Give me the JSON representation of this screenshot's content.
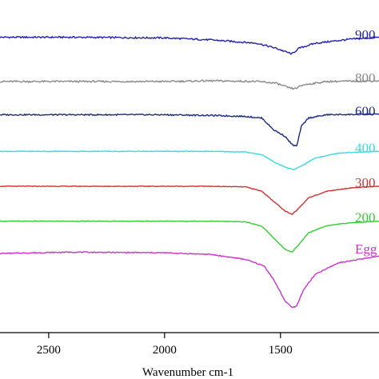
{
  "chart_data": {
    "type": "line",
    "title": "",
    "xlabel": "Wavenumber cm-1",
    "ylabel": "",
    "xlim": [
      2710,
      1075
    ],
    "x_reversed": true,
    "xticks": [
      2500,
      2000,
      1500
    ],
    "ylim": [
      0,
      10
    ],
    "grid": false,
    "legend": "right-edge inline labels",
    "series": [
      {
        "name": "900",
        "color": "#2222aa",
        "baseline": 8.85,
        "points": [
          [
            2710,
            8.88
          ],
          [
            2400,
            8.88
          ],
          [
            2000,
            8.86
          ],
          [
            1800,
            8.8
          ],
          [
            1600,
            8.7
          ],
          [
            1520,
            8.55
          ],
          [
            1460,
            8.4
          ],
          [
            1450,
            8.38
          ],
          [
            1420,
            8.55
          ],
          [
            1350,
            8.7
          ],
          [
            1200,
            8.82
          ],
          [
            1075,
            8.88
          ]
        ]
      },
      {
        "name": "800",
        "color": "#888888",
        "baseline": 7.55,
        "points": [
          [
            2710,
            7.55
          ],
          [
            2400,
            7.55
          ],
          [
            2000,
            7.55
          ],
          [
            1800,
            7.57
          ],
          [
            1600,
            7.55
          ],
          [
            1520,
            7.5
          ],
          [
            1460,
            7.35
          ],
          [
            1440,
            7.33
          ],
          [
            1400,
            7.45
          ],
          [
            1300,
            7.55
          ],
          [
            1075,
            7.57
          ]
        ]
      },
      {
        "name": "600",
        "color": "#1a2a80",
        "baseline": 6.55,
        "points": [
          [
            2710,
            6.55
          ],
          [
            2400,
            6.55
          ],
          [
            2000,
            6.55
          ],
          [
            1800,
            6.53
          ],
          [
            1650,
            6.5
          ],
          [
            1580,
            6.45
          ],
          [
            1530,
            6.1
          ],
          [
            1480,
            5.9
          ],
          [
            1450,
            5.65
          ],
          [
            1430,
            5.6
          ],
          [
            1410,
            6.2
          ],
          [
            1380,
            6.45
          ],
          [
            1300,
            6.55
          ],
          [
            1075,
            6.57
          ]
        ]
      },
      {
        "name": "400",
        "color": "#33dddd",
        "baseline": 5.45,
        "points": [
          [
            2710,
            5.45
          ],
          [
            2400,
            5.45
          ],
          [
            2000,
            5.45
          ],
          [
            1800,
            5.45
          ],
          [
            1650,
            5.43
          ],
          [
            1580,
            5.35
          ],
          [
            1520,
            5.1
          ],
          [
            1470,
            4.95
          ],
          [
            1440,
            4.9
          ],
          [
            1400,
            5.05
          ],
          [
            1350,
            5.25
          ],
          [
            1250,
            5.4
          ],
          [
            1075,
            5.45
          ]
        ]
      },
      {
        "name": "300",
        "color": "#cc3333",
        "baseline": 4.4,
        "points": [
          [
            2710,
            4.4
          ],
          [
            2400,
            4.4
          ],
          [
            2000,
            4.4
          ],
          [
            1800,
            4.4
          ],
          [
            1650,
            4.38
          ],
          [
            1580,
            4.25
          ],
          [
            1530,
            3.95
          ],
          [
            1480,
            3.65
          ],
          [
            1450,
            3.55
          ],
          [
            1420,
            3.75
          ],
          [
            1380,
            4.05
          ],
          [
            1300,
            4.25
          ],
          [
            1200,
            4.35
          ],
          [
            1075,
            4.4
          ]
        ]
      },
      {
        "name": "200",
        "color": "#33cc33",
        "baseline": 3.35,
        "points": [
          [
            2710,
            3.35
          ],
          [
            2400,
            3.35
          ],
          [
            2000,
            3.35
          ],
          [
            1800,
            3.35
          ],
          [
            1650,
            3.33
          ],
          [
            1580,
            3.2
          ],
          [
            1530,
            2.85
          ],
          [
            1480,
            2.5
          ],
          [
            1450,
            2.42
          ],
          [
            1420,
            2.65
          ],
          [
            1380,
            3.0
          ],
          [
            1300,
            3.22
          ],
          [
            1200,
            3.3
          ],
          [
            1075,
            3.35
          ]
        ]
      },
      {
        "name": "Egg",
        "color": "#cc33cc",
        "baseline": 2.4,
        "points": [
          [
            2710,
            2.38
          ],
          [
            2400,
            2.42
          ],
          [
            2000,
            2.4
          ],
          [
            1800,
            2.35
          ],
          [
            1650,
            2.2
          ],
          [
            1570,
            2.0
          ],
          [
            1530,
            1.6
          ],
          [
            1480,
            0.95
          ],
          [
            1450,
            0.75
          ],
          [
            1430,
            0.8
          ],
          [
            1400,
            1.3
          ],
          [
            1350,
            1.75
          ],
          [
            1250,
            2.1
          ],
          [
            1075,
            2.3
          ]
        ]
      }
    ]
  }
}
